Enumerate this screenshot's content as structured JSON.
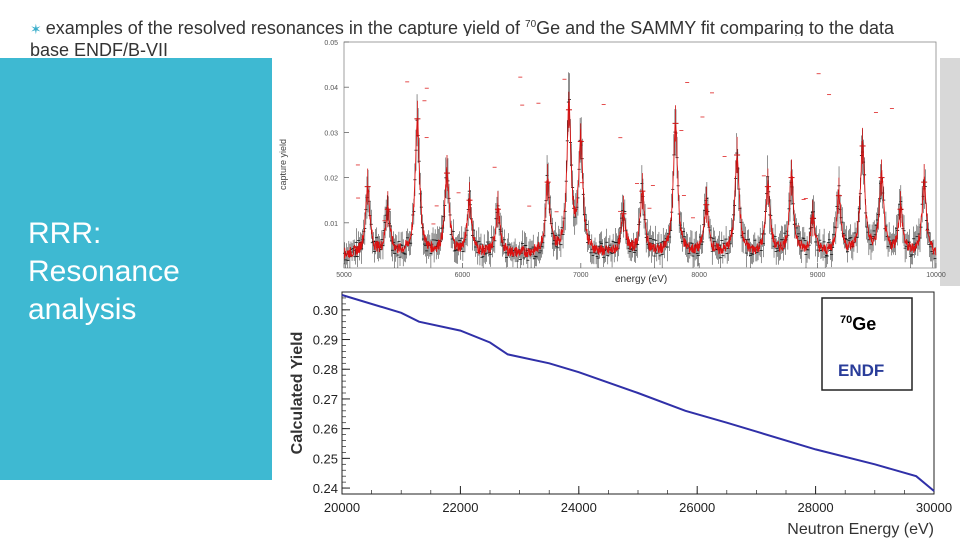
{
  "slide": {
    "heading_part1": "examples of the resolved resonances in the capture yield of ",
    "heading_sup": "70",
    "heading_part2": "Ge and the SAMMY fit comparing to the data base ENDF/B-VII",
    "side_title_line1": "RRR:",
    "side_title_line2": "Resonance",
    "side_title_line3": "analysis"
  },
  "colors": {
    "teal": "#3eb9d2",
    "fit_red": "#dd1111",
    "data_black": "#111111",
    "yield_blue": "#3030a8"
  },
  "chart_data": [
    {
      "type": "scatter",
      "title": "",
      "xlabel": "energy (eV)",
      "ylabel": "capture yield",
      "xlim": [
        5000,
        10000
      ],
      "ylim": [
        0,
        0.05
      ],
      "x_ticks": [
        "5000",
        "6000",
        "7000",
        "8000",
        "9000",
        "10000"
      ],
      "y_ticks": [
        "0.05",
        "0.04",
        "0.03",
        "0.02",
        "0.01"
      ],
      "baseline": 0.003,
      "resonances": [
        {
          "x": 5200,
          "y": 0.018
        },
        {
          "x": 5370,
          "y": 0.013
        },
        {
          "x": 5620,
          "y": 0.033
        },
        {
          "x": 5870,
          "y": 0.021
        },
        {
          "x": 6060,
          "y": 0.015
        },
        {
          "x": 6300,
          "y": 0.013
        },
        {
          "x": 6720,
          "y": 0.019
        },
        {
          "x": 6900,
          "y": 0.035
        },
        {
          "x": 7000,
          "y": 0.028
        },
        {
          "x": 7360,
          "y": 0.012
        },
        {
          "x": 7520,
          "y": 0.017
        },
        {
          "x": 7800,
          "y": 0.032
        },
        {
          "x": 8060,
          "y": 0.014
        },
        {
          "x": 8320,
          "y": 0.025
        },
        {
          "x": 8580,
          "y": 0.018
        },
        {
          "x": 8780,
          "y": 0.02
        },
        {
          "x": 8960,
          "y": 0.011
        },
        {
          "x": 9180,
          "y": 0.016
        },
        {
          "x": 9380,
          "y": 0.027
        },
        {
          "x": 9540,
          "y": 0.02
        },
        {
          "x": 9700,
          "y": 0.013
        },
        {
          "x": 9900,
          "y": 0.019
        }
      ]
    },
    {
      "type": "line",
      "title": "",
      "xlabel": "Neutron Energy (eV)",
      "ylabel": "Calculated Yield",
      "xlim": [
        20000,
        30000
      ],
      "ylim": [
        0.238,
        0.306
      ],
      "x_ticks": [
        20000,
        22000,
        24000,
        26000,
        28000,
        30000
      ],
      "y_ticks": [
        0.24,
        0.25,
        0.26,
        0.27,
        0.28,
        0.29,
        0.3
      ],
      "x": [
        20000,
        21000,
        21300,
        22000,
        22500,
        22800,
        23500,
        24000,
        25000,
        25800,
        26500,
        27000,
        28000,
        29000,
        29700,
        30000
      ],
      "y": [
        0.305,
        0.299,
        0.296,
        0.293,
        0.289,
        0.285,
        0.282,
        0.279,
        0.272,
        0.266,
        0.262,
        0.259,
        0.253,
        0.248,
        0.244,
        0.239
      ],
      "legend": {
        "isotope_sup": "70",
        "isotope": "Ge",
        "library": "ENDF"
      }
    }
  ]
}
